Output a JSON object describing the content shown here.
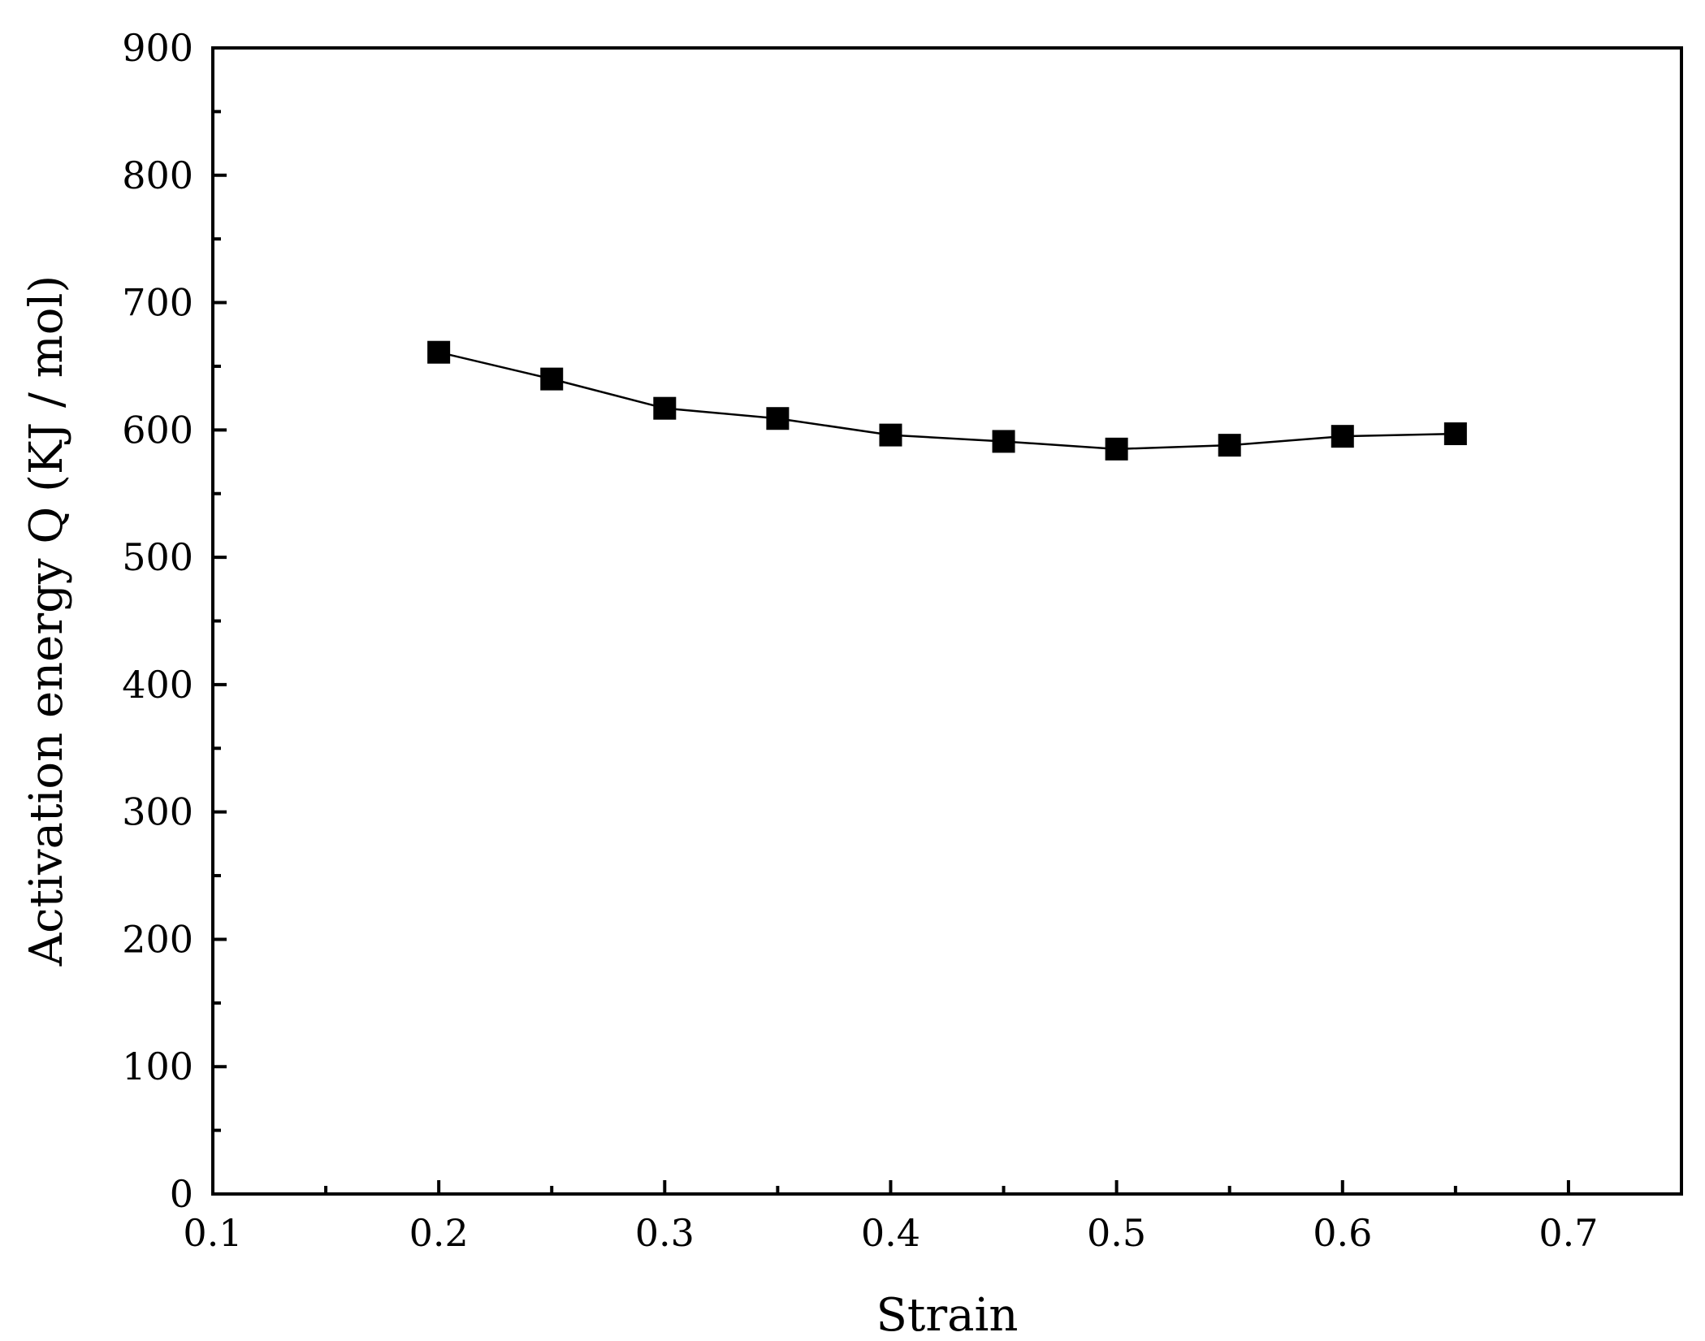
{
  "chart_data": {
    "type": "line",
    "xlabel": "Strain",
    "ylabel": "Activation energy Q (KJ / mol)",
    "xlim": [
      0.1,
      0.75
    ],
    "ylim": [
      0,
      900
    ],
    "x_ticks": [
      0.1,
      0.2,
      0.3,
      0.4,
      0.5,
      0.6,
      0.7
    ],
    "x_tick_labels": [
      "0.1",
      "0.2",
      "0.3",
      "0.4",
      "0.5",
      "0.6",
      "0.7"
    ],
    "y_ticks": [
      0,
      100,
      200,
      300,
      400,
      500,
      600,
      700,
      800,
      900
    ],
    "y_tick_labels": [
      "0",
      "100",
      "200",
      "300",
      "400",
      "500",
      "600",
      "700",
      "800",
      "900"
    ],
    "grid": false,
    "marker": "filled-square",
    "colors": {
      "series": "#000000",
      "axes": "#000000"
    },
    "series": [
      {
        "x": [
          0.2,
          0.25,
          0.3,
          0.35,
          0.4,
          0.45,
          0.5,
          0.55,
          0.6,
          0.65
        ],
        "y": [
          661,
          640,
          617,
          609,
          596,
          591,
          585,
          588,
          595,
          597
        ]
      }
    ]
  }
}
